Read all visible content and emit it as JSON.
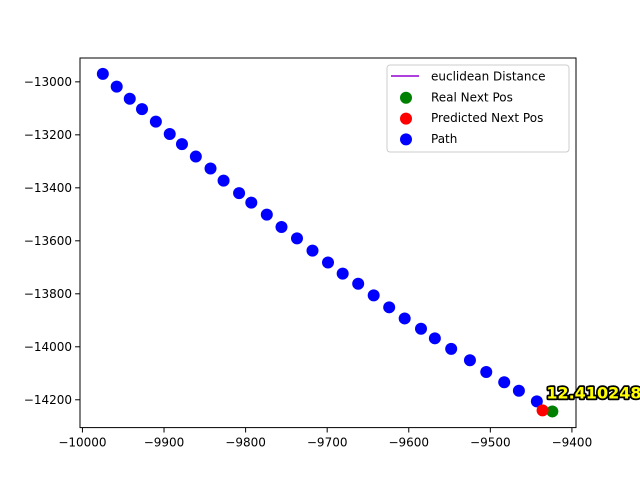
{
  "chart_data": {
    "type": "scatter",
    "title": "",
    "xlabel": "",
    "ylabel": "",
    "xlim": [
      -10003,
      -9395
    ],
    "ylim": [
      -14305,
      -12910
    ],
    "grid": false,
    "legend_position": "top-right",
    "x_ticks": [
      {
        "value": -10000,
        "label": "−10000"
      },
      {
        "value": -9900,
        "label": "−9900"
      },
      {
        "value": -9800,
        "label": "−9800"
      },
      {
        "value": -9700,
        "label": "−9700"
      },
      {
        "value": -9600,
        "label": "−9600"
      },
      {
        "value": -9500,
        "label": "−9500"
      },
      {
        "value": -9400,
        "label": "−9400"
      }
    ],
    "y_ticks": [
      {
        "value": -13000,
        "label": "−13000"
      },
      {
        "value": -13200,
        "label": "−13200"
      },
      {
        "value": -13400,
        "label": "−13400"
      },
      {
        "value": -13600,
        "label": "−13600"
      },
      {
        "value": -13800,
        "label": "−13800"
      },
      {
        "value": -14000,
        "label": "−14000"
      },
      {
        "value": -14200,
        "label": "−14200"
      }
    ],
    "series": [
      {
        "name": "Path",
        "color": "#0000ff",
        "marker": "circle",
        "points": [
          {
            "x": -9975,
            "y": -12970
          },
          {
            "x": -9958,
            "y": -13018
          },
          {
            "x": -9942,
            "y": -13064
          },
          {
            "x": -9927,
            "y": -13103
          },
          {
            "x": -9910,
            "y": -13150
          },
          {
            "x": -9893,
            "y": -13197
          },
          {
            "x": -9878,
            "y": -13235
          },
          {
            "x": -9861,
            "y": -13282
          },
          {
            "x": -9843,
            "y": -13327
          },
          {
            "x": -9827,
            "y": -13373
          },
          {
            "x": -9808,
            "y": -13420
          },
          {
            "x": -9793,
            "y": -13456
          },
          {
            "x": -9774,
            "y": -13501
          },
          {
            "x": -9756,
            "y": -13548
          },
          {
            "x": -9737,
            "y": -13591
          },
          {
            "x": -9718,
            "y": -13637
          },
          {
            "x": -9699,
            "y": -13682
          },
          {
            "x": -9681,
            "y": -13724
          },
          {
            "x": -9662,
            "y": -13762
          },
          {
            "x": -9643,
            "y": -13806
          },
          {
            "x": -9624,
            "y": -13851
          },
          {
            "x": -9605,
            "y": -13893
          },
          {
            "x": -9585,
            "y": -13932
          },
          {
            "x": -9568,
            "y": -13968
          },
          {
            "x": -9548,
            "y": -14008
          },
          {
            "x": -9525,
            "y": -14051
          },
          {
            "x": -9505,
            "y": -14095
          },
          {
            "x": -9483,
            "y": -14134
          },
          {
            "x": -9465,
            "y": -14166
          },
          {
            "x": -9443,
            "y": -14206
          }
        ]
      },
      {
        "name": "Real Next Pos",
        "color": "#008000",
        "marker": "circle",
        "points": [
          {
            "x": -9424,
            "y": -14244
          }
        ]
      },
      {
        "name": "Predicted Next Pos",
        "color": "#ff0000",
        "marker": "circle",
        "points": [
          {
            "x": -9436,
            "y": -14240
          }
        ]
      },
      {
        "name": "euclidean Distance",
        "color": "#9400d3",
        "marker": "line",
        "points": [
          {
            "x": -9436,
            "y": -14240
          },
          {
            "x": -9424,
            "y": -14244
          }
        ]
      }
    ],
    "legend": [
      {
        "label": "euclidean Distance",
        "color": "#9400d3",
        "marker": "line"
      },
      {
        "label": "Real Next Pos",
        "color": "#008000",
        "marker": "circle"
      },
      {
        "label": "Predicted Next Pos",
        "color": "#ff0000",
        "marker": "circle"
      },
      {
        "label": "Path",
        "color": "#0000ff",
        "marker": "circle"
      }
    ],
    "annotations": [
      {
        "text": "12.410248",
        "x": -9424,
        "y": -14244,
        "text_color": "#ffff00",
        "outline_color": "#000000"
      }
    ]
  }
}
